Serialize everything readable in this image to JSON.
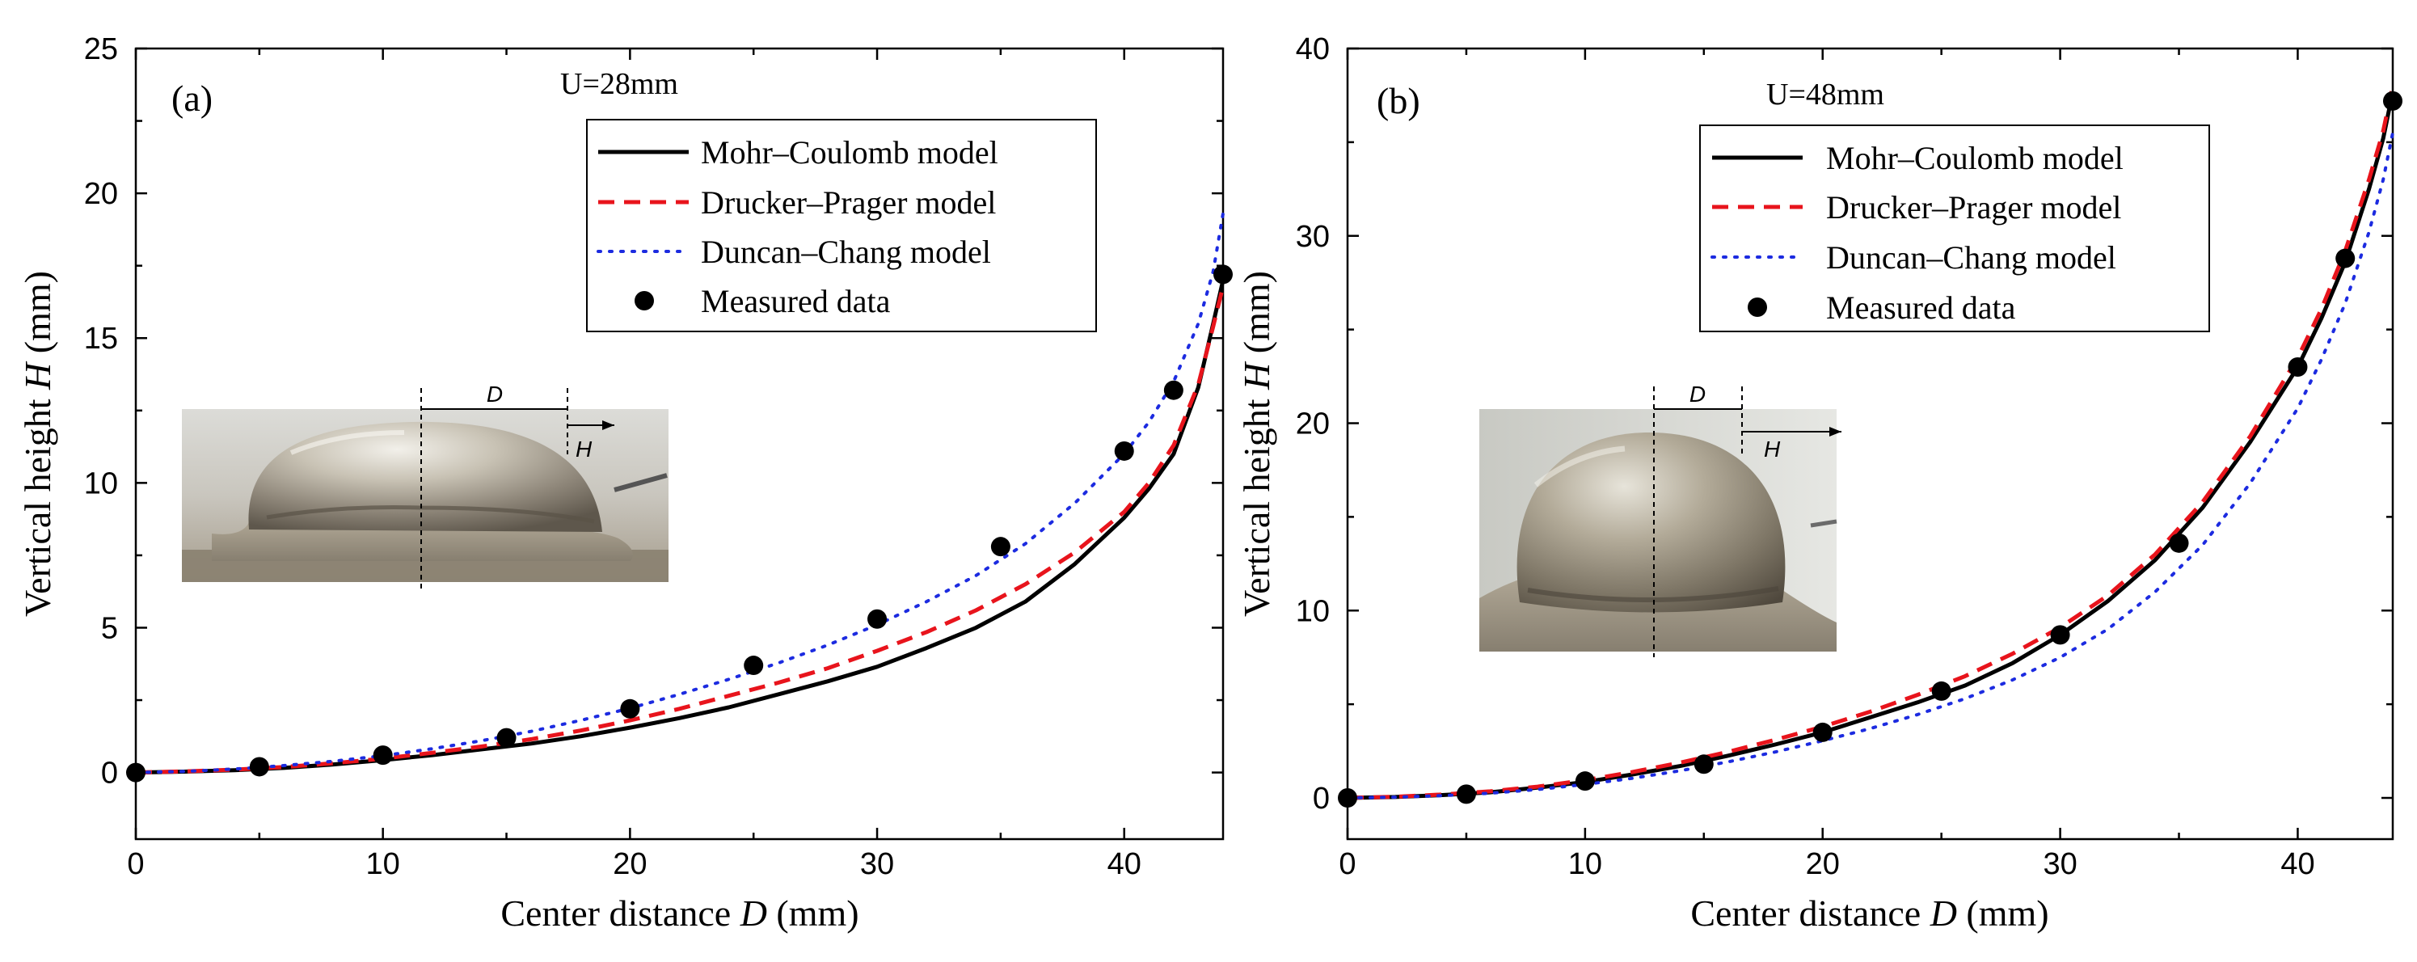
{
  "chart_data": [
    {
      "type": "line",
      "panel_label": "(a)",
      "condition": "U=28mm",
      "xlabel_prefix": "Center distance ",
      "xlabel_var": "D",
      "xlabel_unit": " (mm)",
      "ylabel_prefix": "Vertical height ",
      "ylabel_var": "H",
      "ylabel_unit": " (mm)",
      "xlim": [
        0,
        44
      ],
      "ylim": [
        -2.3,
        25
      ],
      "xticks": [
        0,
        10,
        20,
        30,
        40
      ],
      "yticks": [
        0,
        5,
        10,
        15,
        20,
        25
      ],
      "x_minor": 5,
      "y_minor": 2.5,
      "legend_position": "top-right",
      "series": [
        {
          "name": "Mohr–Coulomb model",
          "style": "solid",
          "color": "#000000",
          "x": [
            0,
            2,
            4,
            6,
            8,
            10,
            12,
            14,
            16,
            18,
            20,
            22,
            24,
            26,
            28,
            30,
            32,
            34,
            36,
            38,
            40,
            41,
            42,
            43,
            43.6,
            44
          ],
          "y": [
            0,
            0.03,
            0.08,
            0.16,
            0.28,
            0.43,
            0.6,
            0.8,
            1.0,
            1.25,
            1.55,
            1.88,
            2.25,
            2.7,
            3.15,
            3.65,
            4.3,
            5.0,
            5.9,
            7.2,
            8.8,
            9.8,
            11.0,
            13.3,
            15.5,
            17.0
          ]
        },
        {
          "name": "Drucker–Prager model",
          "style": "dashed",
          "color": "#e8141c",
          "x": [
            0,
            2,
            4,
            6,
            8,
            10,
            12,
            14,
            16,
            18,
            20,
            22,
            24,
            26,
            28,
            30,
            32,
            34,
            36,
            38,
            40,
            41,
            42,
            43,
            43.6,
            44
          ],
          "y": [
            0,
            0.04,
            0.1,
            0.19,
            0.32,
            0.48,
            0.68,
            0.9,
            1.15,
            1.45,
            1.8,
            2.2,
            2.65,
            3.1,
            3.6,
            4.2,
            4.85,
            5.6,
            6.5,
            7.6,
            9.0,
            10.0,
            11.3,
            13.4,
            15.4,
            16.8
          ]
        },
        {
          "name": "Duncan–Chang model",
          "style": "dotted",
          "color": "#1c2be0",
          "x": [
            0,
            2,
            4,
            6,
            8,
            10,
            12,
            14,
            16,
            18,
            20,
            22,
            24,
            26,
            28,
            30,
            32,
            34,
            36,
            38,
            40,
            41,
            42,
            43,
            43.6,
            44
          ],
          "y": [
            0,
            0.04,
            0.12,
            0.24,
            0.39,
            0.58,
            0.82,
            1.1,
            1.42,
            1.8,
            2.22,
            2.7,
            3.22,
            3.78,
            4.4,
            5.1,
            5.9,
            6.8,
            7.9,
            9.3,
            11.0,
            12.1,
            13.5,
            15.5,
            17.3,
            19.3
          ]
        },
        {
          "name": "Measured data",
          "style": "marker",
          "color": "#000000",
          "x": [
            0,
            5,
            10,
            15,
            20,
            25,
            30,
            35,
            40,
            42,
            44
          ],
          "y": [
            0,
            0.2,
            0.6,
            1.2,
            2.2,
            3.7,
            5.3,
            7.8,
            11.1,
            13.2,
            17.2
          ]
        }
      ],
      "inset": {
        "label_d": "D",
        "label_h": "H"
      }
    },
    {
      "type": "line",
      "panel_label": "(b)",
      "condition": "U=48mm",
      "xlabel_prefix": "Center distance ",
      "xlabel_var": "D",
      "xlabel_unit": " (mm)",
      "ylabel_prefix": "Vertical height ",
      "ylabel_var": "H",
      "ylabel_unit": " (mm)",
      "xlim": [
        0,
        44
      ],
      "ylim": [
        -2.2,
        40
      ],
      "xticks": [
        0,
        10,
        20,
        30,
        40
      ],
      "yticks": [
        0,
        10,
        20,
        30,
        40
      ],
      "x_minor": 5,
      "y_minor": 5,
      "legend_position": "top-right",
      "series": [
        {
          "name": "Mohr–Coulomb model",
          "style": "solid",
          "color": "#000000",
          "x": [
            0,
            2,
            4,
            6,
            8,
            10,
            12,
            14,
            16,
            18,
            20,
            22,
            24,
            26,
            28,
            30,
            32,
            34,
            36,
            38,
            40,
            41,
            42,
            43,
            43.6,
            44
          ],
          "y": [
            0,
            0.05,
            0.15,
            0.3,
            0.55,
            0.85,
            1.25,
            1.7,
            2.25,
            2.85,
            3.5,
            4.3,
            5.1,
            6.0,
            7.2,
            8.7,
            10.5,
            12.7,
            15.5,
            19.0,
            23.0,
            25.6,
            28.6,
            32.5,
            35.2,
            37.7
          ]
        },
        {
          "name": "Drucker–Prager model",
          "style": "dashed",
          "color": "#e8141c",
          "x": [
            0,
            2,
            4,
            6,
            8,
            10,
            12,
            14,
            16,
            18,
            20,
            22,
            24,
            26,
            28,
            30,
            32,
            34,
            36,
            38,
            40,
            41,
            42,
            43,
            43.6,
            44
          ],
          "y": [
            0,
            0.06,
            0.18,
            0.35,
            0.6,
            0.95,
            1.38,
            1.88,
            2.45,
            3.1,
            3.8,
            4.6,
            5.5,
            6.5,
            7.7,
            9.1,
            10.8,
            13.0,
            15.8,
            19.3,
            23.5,
            26.1,
            29.2,
            33.0,
            35.6,
            38.0
          ]
        },
        {
          "name": "Duncan–Chang model",
          "style": "dotted",
          "color": "#1c2be0",
          "x": [
            0,
            2,
            4,
            6,
            8,
            10,
            12,
            14,
            16,
            18,
            20,
            22,
            24,
            26,
            28,
            30,
            32,
            34,
            36,
            38,
            40,
            41,
            42,
            43,
            43.6,
            44
          ],
          "y": [
            0,
            0.04,
            0.12,
            0.25,
            0.45,
            0.72,
            1.05,
            1.45,
            1.92,
            2.45,
            3.05,
            3.7,
            4.45,
            5.3,
            6.3,
            7.5,
            9.0,
            11.0,
            13.5,
            16.8,
            20.8,
            23.4,
            26.4,
            30.2,
            33.0,
            35.5
          ]
        },
        {
          "name": "Measured data",
          "style": "marker",
          "color": "#000000",
          "x": [
            0,
            5,
            10,
            15,
            20,
            25,
            30,
            35,
            40,
            42,
            44
          ],
          "y": [
            0,
            0.2,
            0.9,
            1.8,
            3.5,
            5.7,
            8.7,
            13.6,
            23.0,
            28.8,
            37.2
          ]
        }
      ],
      "inset": {
        "label_d": "D",
        "label_h": "H"
      }
    }
  ]
}
